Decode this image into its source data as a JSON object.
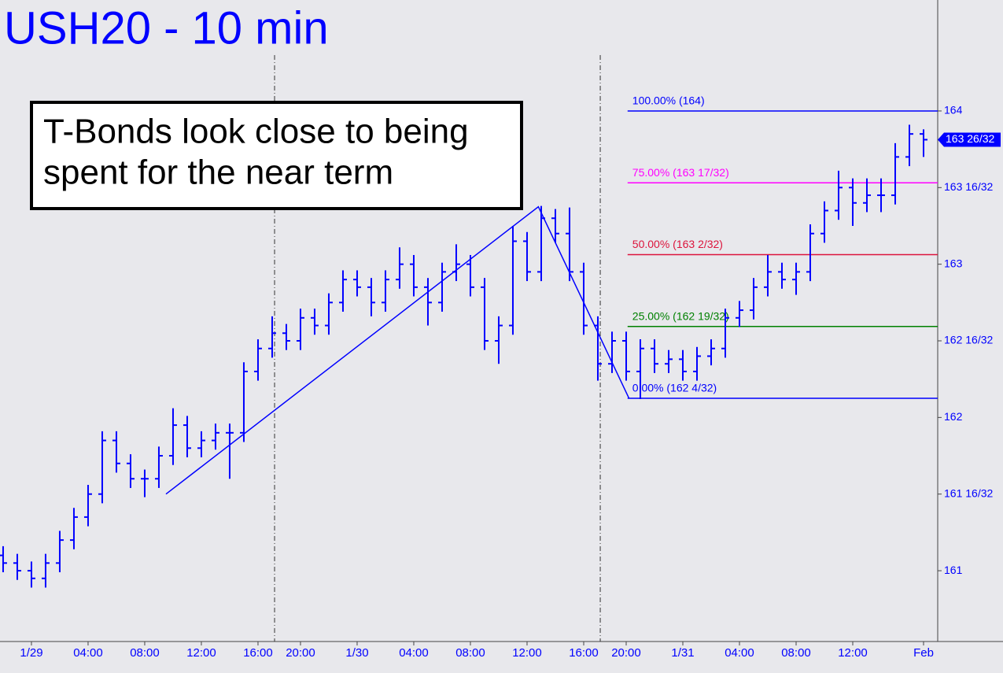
{
  "chart_data": {
    "type": "ohlc",
    "title": "USH20 - 10 min",
    "annotation": [
      "T-Bonds look close to being",
      "spent for the near term"
    ],
    "color": "#0000ff",
    "x": [
      -2,
      -1,
      0,
      1,
      2,
      3,
      4,
      5,
      6,
      7,
      8,
      9,
      10,
      11,
      12,
      13,
      14,
      15,
      16,
      17,
      18,
      19,
      20,
      21,
      22,
      23,
      24,
      25,
      26,
      27,
      28,
      29,
      30,
      31,
      32,
      33,
      34,
      35,
      36,
      37,
      38,
      39,
      40,
      41,
      42,
      43,
      44,
      45,
      46,
      47,
      48,
      49,
      50,
      51,
      52,
      53,
      54,
      55,
      56,
      57,
      58,
      59,
      60,
      61,
      62,
      63
    ],
    "open": [
      161.1,
      161.05,
      161.0,
      160.95,
      161.05,
      161.2,
      161.35,
      161.5,
      161.85,
      161.7,
      161.6,
      161.6,
      161.75,
      161.95,
      161.8,
      161.85,
      161.9,
      161.9,
      162.3,
      162.45,
      162.55,
      162.5,
      162.65,
      162.6,
      162.75,
      162.9,
      162.85,
      162.75,
      162.9,
      163.0,
      162.85,
      162.75,
      162.95,
      163.0,
      162.85,
      162.5,
      162.6,
      163.15,
      162.95,
      163.3,
      163.2,
      162.95,
      162.6,
      162.35,
      162.5,
      162.3,
      162.45,
      162.35,
      162.38,
      162.3,
      162.4,
      162.45,
      162.65,
      162.7,
      162.85,
      162.95,
      162.9,
      162.95,
      163.2,
      163.35,
      163.5,
      163.4,
      163.45,
      163.45,
      163.7,
      163.85
    ],
    "high": [
      161.16,
      161.11,
      161.06,
      161.11,
      161.26,
      161.41,
      161.56,
      161.91,
      161.91,
      161.76,
      161.66,
      161.81,
      162.06,
      162.01,
      161.91,
      161.96,
      161.96,
      162.36,
      162.51,
      162.66,
      162.61,
      162.71,
      162.71,
      162.81,
      162.96,
      162.96,
      162.91,
      162.96,
      163.11,
      163.06,
      162.91,
      163.01,
      163.13,
      163.06,
      162.91,
      162.66,
      163.25,
      163.21,
      163.38,
      163.36,
      163.37,
      163.01,
      162.66,
      162.56,
      162.56,
      162.51,
      162.51,
      162.44,
      162.44,
      162.46,
      162.51,
      162.71,
      162.76,
      162.91,
      163.06,
      163.01,
      163.01,
      163.26,
      163.41,
      163.61,
      163.56,
      163.56,
      163.56,
      163.79,
      163.91,
      163.88
    ],
    "low": [
      160.99,
      160.94,
      160.89,
      160.89,
      160.99,
      161.14,
      161.29,
      161.44,
      161.64,
      161.54,
      161.48,
      161.54,
      161.69,
      161.74,
      161.74,
      161.79,
      161.6,
      161.84,
      162.24,
      162.39,
      162.44,
      162.44,
      162.54,
      162.54,
      162.69,
      162.79,
      162.66,
      162.69,
      162.84,
      162.79,
      162.6,
      162.69,
      162.89,
      162.79,
      162.44,
      162.35,
      162.54,
      162.89,
      162.89,
      163.14,
      162.89,
      162.54,
      162.24,
      162.29,
      162.24,
      162.12,
      162.29,
      162.29,
      162.24,
      162.24,
      162.34,
      162.39,
      162.59,
      162.64,
      162.79,
      162.84,
      162.8,
      162.89,
      163.14,
      163.29,
      163.25,
      163.34,
      163.34,
      163.39,
      163.64,
      163.7
    ],
    "close": [
      161.05,
      161.0,
      160.95,
      161.05,
      161.2,
      161.35,
      161.5,
      161.85,
      161.7,
      161.6,
      161.6,
      161.75,
      161.95,
      161.8,
      161.85,
      161.9,
      161.9,
      162.3,
      162.45,
      162.55,
      162.5,
      162.65,
      162.6,
      162.75,
      162.9,
      162.85,
      162.75,
      162.9,
      163.0,
      162.85,
      162.75,
      162.95,
      163.0,
      162.85,
      162.5,
      162.6,
      163.15,
      162.95,
      163.3,
      163.2,
      162.95,
      162.6,
      162.35,
      162.5,
      162.3,
      162.45,
      162.35,
      162.38,
      162.3,
      162.4,
      162.45,
      162.65,
      162.7,
      162.85,
      162.95,
      162.9,
      162.95,
      163.2,
      163.35,
      163.5,
      163.4,
      163.45,
      163.45,
      163.7,
      163.85,
      163.8125
    ],
    "last_price": {
      "value": 163.8125,
      "label": "163 26/32"
    },
    "trendline": {
      "x": [
        9.5,
        35.8,
        42.2
      ],
      "y": [
        161.5,
        163.375,
        162.125
      ],
      "color": "#0000ff"
    },
    "session_breaks": [
      17.17,
      40.17
    ],
    "levels_start": 42.1,
    "levels": [
      {
        "label": "100.00% (164)",
        "value": 164,
        "color": "#0000ff"
      },
      {
        "label": "75.00% (163 17/32)",
        "value": 163.53125,
        "color": "#ff00ff"
      },
      {
        "label": "50.00% (163 2/32)",
        "value": 163.0625,
        "color": "#dc143c"
      },
      {
        "label": "25.00% (162 19/32)",
        "value": 162.59375,
        "color": "#008000"
      },
      {
        "label": "0.00% (162 4/32)",
        "value": 162.125,
        "color": "#0000ff"
      }
    ],
    "xlim": [
      -2.22,
      64
    ],
    "ylim": [
      160.538,
      164.724
    ],
    "xticks": [
      {
        "value": 0,
        "label": "1/29"
      },
      {
        "value": 4,
        "label": "04:00"
      },
      {
        "value": 8,
        "label": "08:00"
      },
      {
        "value": 12,
        "label": "12:00"
      },
      {
        "value": 16,
        "label": "16:00"
      },
      {
        "value": 19,
        "label": "20:00"
      },
      {
        "value": 23,
        "label": "1/30"
      },
      {
        "value": 27,
        "label": "04:00"
      },
      {
        "value": 31,
        "label": "08:00"
      },
      {
        "value": 35,
        "label": "12:00"
      },
      {
        "value": 39,
        "label": "16:00"
      },
      {
        "value": 42,
        "label": "20:00"
      },
      {
        "value": 46,
        "label": "1/31"
      },
      {
        "value": 50,
        "label": "04:00"
      },
      {
        "value": 54,
        "label": "08:00"
      },
      {
        "value": 58,
        "label": "12:00"
      },
      {
        "value": 63,
        "label": "Feb"
      }
    ],
    "yticks": [
      161,
      {
        "value": 161.5,
        "label": "161 16/32"
      },
      162,
      {
        "value": 162.5,
        "label": "162 16/32"
      },
      163,
      {
        "value": 163.5,
        "label": "163 16/32"
      },
      164
    ]
  }
}
